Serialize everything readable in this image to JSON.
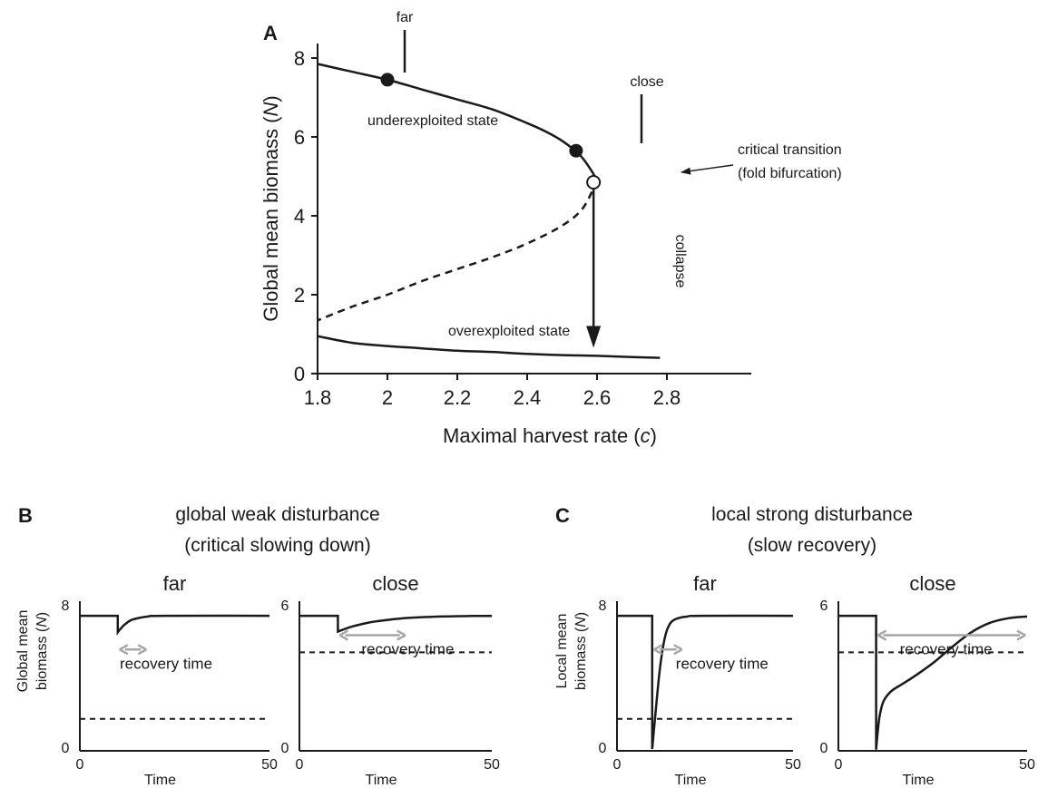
{
  "figure": {
    "panel_A": {
      "letter": "A"
    },
    "panel_B": {
      "letter": "B",
      "title_line1": "global weak disturbance",
      "title_line2": "(critical slowing down)"
    },
    "panel_C": {
      "letter": "C",
      "title_line1": "local strong disturbance",
      "title_line2": "(slow recovery)"
    },
    "colors": {
      "line": "#1a1a1a",
      "arrow_gray": "#a6a6a6",
      "open_point_fill": "#ffffff"
    }
  },
  "chart_data": [
    {
      "id": "A",
      "type": "line",
      "xlabel_main": "Maximal harvest rate (",
      "xlabel_var": "c",
      "xlabel_end": ")",
      "ylabel_main": "Global mean biomass (",
      "ylabel_var": "N",
      "ylabel_end": ")",
      "xlim": [
        1.8,
        2.8
      ],
      "ylim": [
        0,
        8
      ],
      "xticks": [
        "1.8",
        "2",
        "2.2",
        "2.4",
        "2.6",
        "2.8"
      ],
      "yticks": [
        "0",
        "2",
        "4",
        "6",
        "8"
      ],
      "grid": false,
      "series": [
        {
          "style": "solid",
          "x": [
            1.8,
            1.9,
            2.0,
            2.1,
            2.2,
            2.3,
            2.4,
            2.45,
            2.5,
            2.55,
            2.58,
            2.6
          ],
          "y": [
            7.85,
            7.65,
            7.45,
            7.2,
            6.95,
            6.7,
            6.35,
            6.15,
            5.9,
            5.55,
            5.2,
            4.9
          ]
        },
        {
          "style": "dashed",
          "x": [
            2.6,
            2.56,
            2.5,
            2.4,
            2.3,
            2.2,
            2.1,
            2.0,
            1.9,
            1.8
          ],
          "y": [
            4.9,
            4.2,
            3.75,
            3.3,
            2.95,
            2.65,
            2.35,
            2.0,
            1.7,
            1.35
          ]
        },
        {
          "style": "solid",
          "x": [
            1.8,
            1.9,
            2.0,
            2.1,
            2.2,
            2.3,
            2.4,
            2.5,
            2.6,
            2.7,
            2.78
          ],
          "y": [
            0.95,
            0.78,
            0.7,
            0.64,
            0.58,
            0.55,
            0.5,
            0.47,
            0.45,
            0.42,
            0.4
          ]
        }
      ],
      "points": [
        {
          "x": 2.0,
          "y": 7.45,
          "filled": true,
          "marker_label": "far"
        },
        {
          "x": 2.54,
          "y": 5.65,
          "filled": true,
          "marker_label": "close"
        },
        {
          "x": 2.59,
          "y": 4.85,
          "filled": false
        }
      ],
      "annotations": {
        "upper_branch": "underexploited state",
        "lower_branch": "overexploited state",
        "transition_line1": "critical transition",
        "transition_line2": "(fold bifurcation)",
        "collapse": "collapse"
      },
      "collapse_arrow": {
        "x": 2.59,
        "y_from": 4.85,
        "y_to": 0.7
      }
    },
    {
      "id": "B_far",
      "type": "line",
      "subtitle": "far",
      "xlim": [
        0,
        50
      ],
      "ylim": [
        0,
        8
      ],
      "xticks": [
        "0",
        "50"
      ],
      "yticks": [
        "0",
        "8"
      ],
      "xlabel": "Time",
      "ylabel_line1": "Global mean",
      "ylabel_line2_main": "biomass (",
      "ylabel_var": "N",
      "ylabel_end": ")",
      "series": [
        {
          "x": [
            0,
            10,
            10,
            11,
            12,
            13,
            14,
            16,
            18,
            22,
            50
          ],
          "y": [
            7.4,
            7.4,
            6.5,
            6.75,
            6.95,
            7.1,
            7.2,
            7.3,
            7.36,
            7.4,
            7.4
          ]
        }
      ],
      "threshold": 1.75,
      "recovery": {
        "x_start": 10,
        "x_end": 18,
        "y": 5.55,
        "label": "recovery time"
      }
    },
    {
      "id": "B_close",
      "type": "line",
      "subtitle": "close",
      "xlim": [
        0,
        50
      ],
      "ylim": [
        0,
        6
      ],
      "xticks": [
        "0",
        "50"
      ],
      "yticks": [
        "0",
        "6"
      ],
      "xlabel": "Time",
      "series": [
        {
          "x": [
            0,
            10,
            10,
            12,
            14,
            16,
            18,
            20,
            25,
            30,
            35,
            40,
            45,
            50
          ],
          "y": [
            5.55,
            5.55,
            4.9,
            5.02,
            5.12,
            5.2,
            5.27,
            5.32,
            5.42,
            5.48,
            5.51,
            5.53,
            5.54,
            5.54
          ]
        }
      ],
      "threshold": 4.05,
      "recovery": {
        "x_start": 10,
        "x_end": 28,
        "y": 4.75,
        "label": "recovery time"
      }
    },
    {
      "id": "C_far",
      "type": "line",
      "subtitle": "far",
      "xlim": [
        0,
        50
      ],
      "ylim": [
        0,
        8
      ],
      "xticks": [
        "0",
        "50"
      ],
      "yticks": [
        "0",
        "8"
      ],
      "xlabel": "Time",
      "ylabel_line1": "Local mean",
      "ylabel_line2_main": "biomass (",
      "ylabel_var": "N",
      "ylabel_end": ")",
      "series": [
        {
          "x": [
            0,
            10,
            10,
            11,
            12,
            13,
            14,
            15,
            16,
            18,
            20,
            24,
            50
          ],
          "y": [
            7.4,
            7.4,
            0.1,
            2.2,
            4.2,
            5.6,
            6.5,
            6.95,
            7.15,
            7.3,
            7.36,
            7.4,
            7.4
          ]
        }
      ],
      "threshold": 1.75,
      "recovery": {
        "x_start": 10,
        "x_end": 19,
        "y": 5.55,
        "label": "recovery time"
      }
    },
    {
      "id": "C_close",
      "type": "line",
      "subtitle": "close",
      "xlim": [
        0,
        50
      ],
      "ylim": [
        0,
        6
      ],
      "xticks": [
        "0",
        "50"
      ],
      "yticks": [
        "0",
        "6"
      ],
      "xlabel": "Time",
      "series": [
        {
          "x": [
            0,
            10,
            10,
            10.5,
            11,
            12,
            14,
            17,
            20,
            25,
            30,
            35,
            40,
            45,
            50
          ],
          "y": [
            5.55,
            5.55,
            0.05,
            0.9,
            1.5,
            2.05,
            2.45,
            2.75,
            3.05,
            3.6,
            4.25,
            4.85,
            5.25,
            5.45,
            5.52
          ]
        }
      ],
      "threshold": 4.05,
      "recovery": {
        "x_start": 10,
        "x_end": 50,
        "y": 4.75,
        "label": "recovery time"
      }
    }
  ]
}
